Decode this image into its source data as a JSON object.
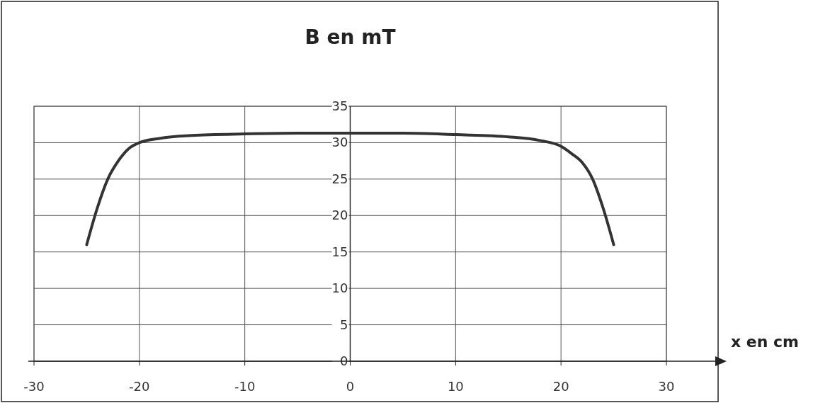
{
  "chart_data": {
    "type": "line",
    "title": "B en mT",
    "xlabel": "x en cm",
    "x": [
      -25,
      -24,
      -23,
      -22,
      -21,
      -20,
      -18,
      -15,
      -10,
      -5,
      0,
      5,
      10,
      15,
      18,
      20,
      21,
      22,
      23,
      24,
      25
    ],
    "values": [
      16,
      21,
      25,
      27.5,
      29.2,
      30,
      30.6,
      31,
      31.2,
      31.3,
      31.3,
      31.3,
      31.1,
      30.8,
      30.3,
      29.5,
      28.5,
      27.3,
      25,
      21,
      16
    ],
    "color": "#333333",
    "xlim": [
      -30,
      30
    ],
    "xticks": [
      -30,
      -20,
      -10,
      0,
      10,
      20,
      30
    ],
    "ylim": [
      0,
      35
    ],
    "yticks": [
      0,
      5,
      10,
      15,
      20,
      25,
      30,
      35
    ],
    "grid": true,
    "marker": "none",
    "line_style": "solid"
  }
}
